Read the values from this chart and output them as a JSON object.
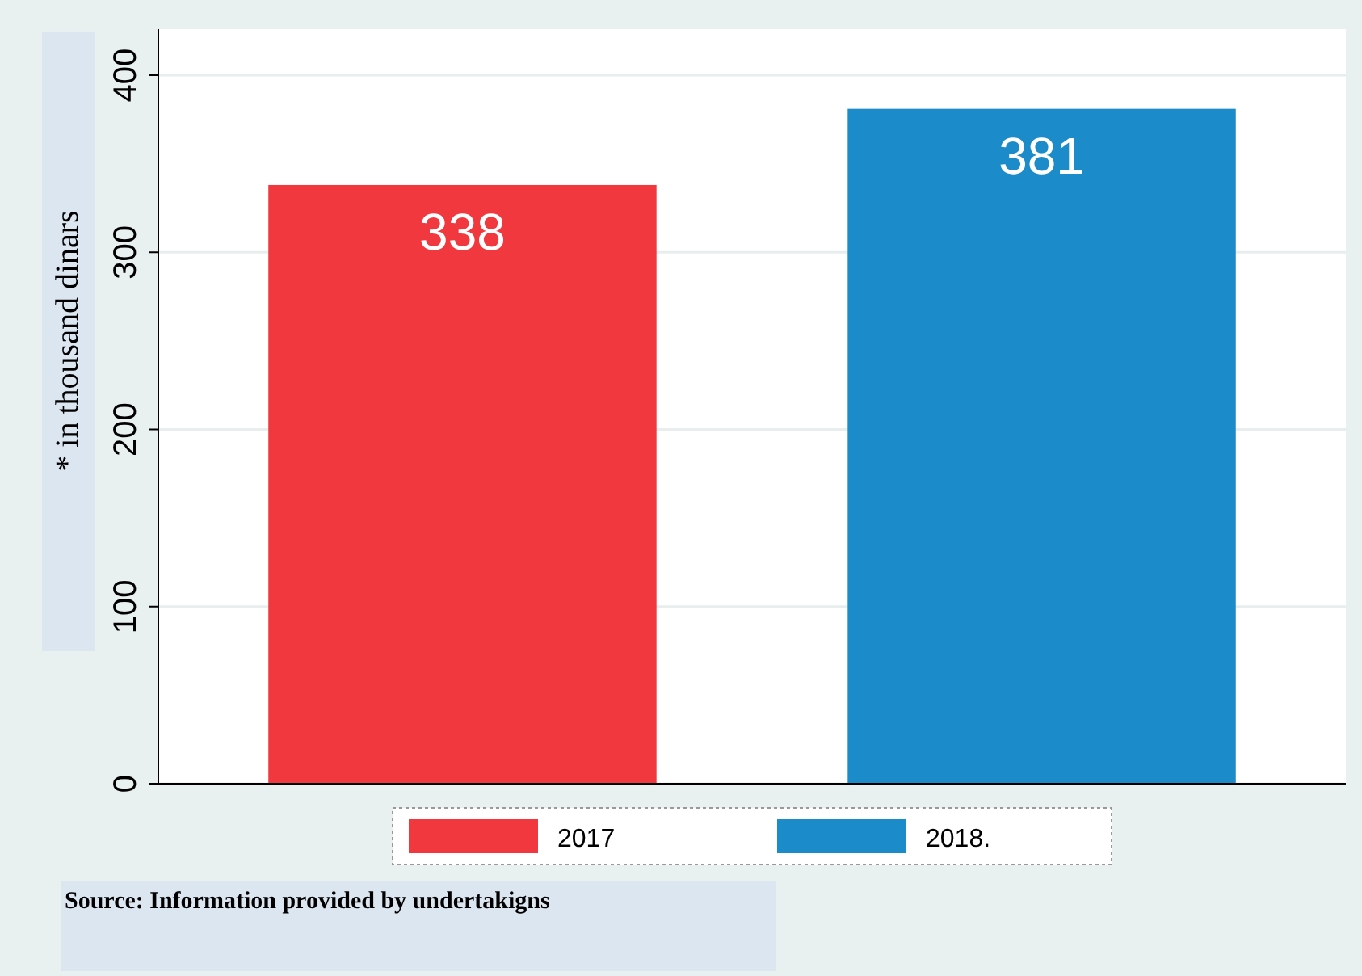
{
  "chart_data": {
    "type": "bar",
    "categories": [
      null
    ],
    "series": [
      {
        "name": "2017",
        "color": "#f0383e",
        "values": [
          338
        ]
      },
      {
        "name": "2018.",
        "color": "#1c8bc9",
        "values": [
          381
        ]
      }
    ],
    "ylabel": "* in thousand dinars",
    "ylim": [
      0,
      426
    ],
    "yticks": [
      0,
      100,
      200,
      300,
      400
    ],
    "grid": "y",
    "legend": "bottom",
    "data_labels": true,
    "annotations": [
      "Source: Information provided by undertakigns"
    ]
  }
}
